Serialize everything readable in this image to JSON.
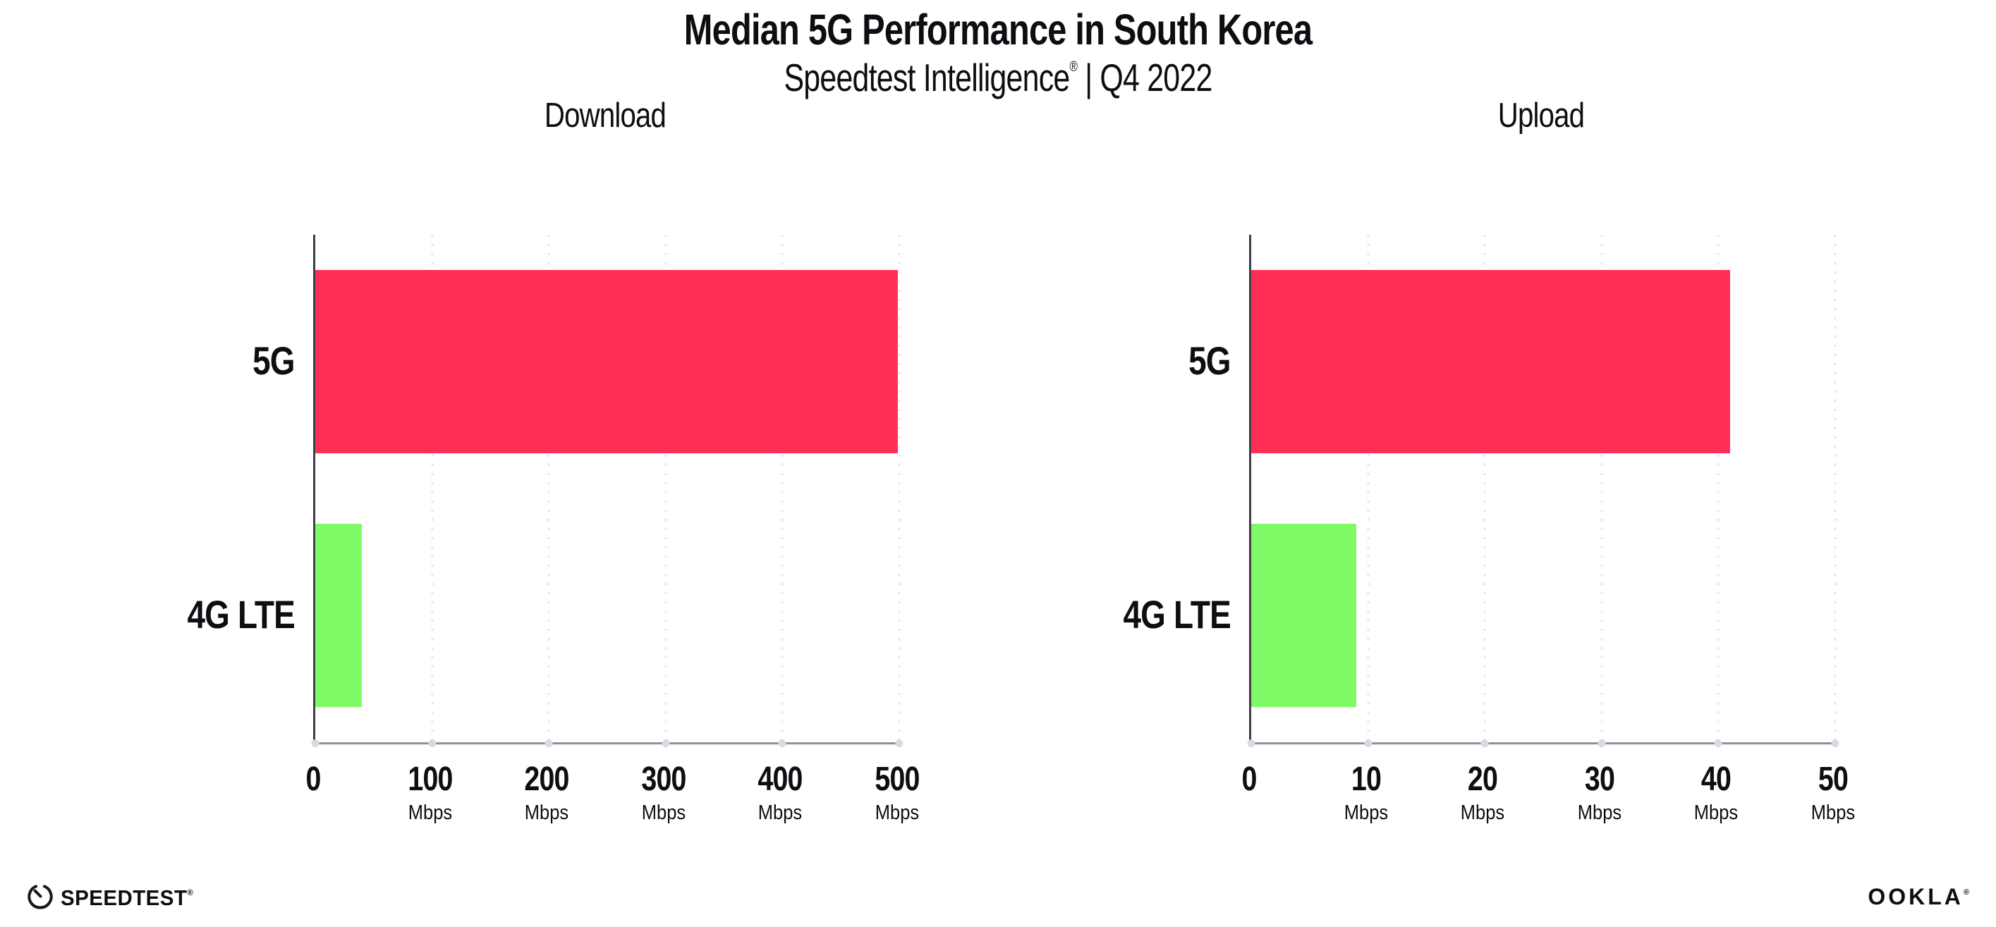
{
  "header": {
    "title": "Median 5G Performance in South Korea",
    "subtitle_brand": "Speedtest Intelligence",
    "subtitle_reg": "®",
    "subtitle_sep": "|",
    "subtitle_period": "Q4 2022"
  },
  "footer": {
    "speedtest_label": "SPEEDTEST",
    "speedtest_reg": "®",
    "ookla_label": "OOKLA",
    "ookla_reg": "®"
  },
  "colors": {
    "bar_5g": "#FF2E56",
    "bar_4g_lte": "#7FFA66",
    "gridline": "#E4E4EE",
    "y_axis": "#3F3F49",
    "x_axis": "#90909A",
    "text": "#0D0D12"
  },
  "chart_data": [
    {
      "type": "bar",
      "orientation": "horizontal",
      "title": "Download",
      "categories": [
        "5G",
        "4G LTE"
      ],
      "values": [
        499,
        40
      ],
      "unit": "Mbps",
      "xlim": [
        0,
        500
      ],
      "xticks": [
        0,
        100,
        200,
        300,
        400,
        500
      ],
      "bar_colors": [
        "#FF2E56",
        "#7FFA66"
      ],
      "grid": "dotted-vertical",
      "legend": "none"
    },
    {
      "type": "bar",
      "orientation": "horizontal",
      "title": "Upload",
      "categories": [
        "5G",
        "4G LTE"
      ],
      "values": [
        41,
        9
      ],
      "unit": "Mbps",
      "xlim": [
        0,
        50
      ],
      "xticks": [
        0,
        10,
        20,
        30,
        40,
        50
      ],
      "bar_colors": [
        "#FF2E56",
        "#7FFA66"
      ],
      "grid": "dotted-vertical",
      "legend": "none"
    }
  ]
}
